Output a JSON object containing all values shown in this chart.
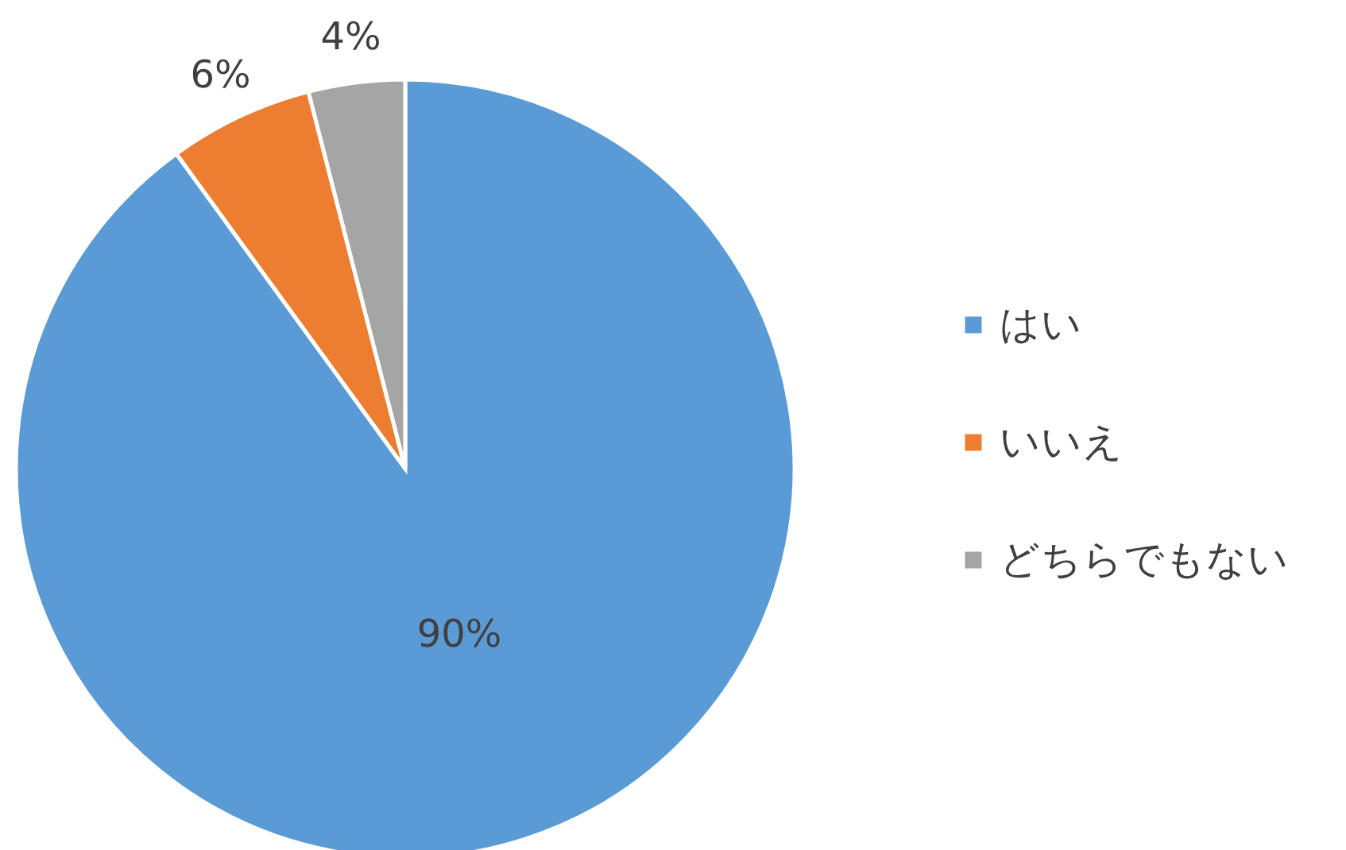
{
  "chart_data": {
    "type": "pie",
    "categories": [
      "はい",
      "いいえ",
      "どちらでもない"
    ],
    "values": [
      90,
      6,
      4
    ],
    "colors": [
      "#5b9bd5",
      "#ed7d31",
      "#a5a5a5"
    ],
    "value_labels": [
      "90%",
      "6%",
      "4%"
    ],
    "legend": "right"
  }
}
